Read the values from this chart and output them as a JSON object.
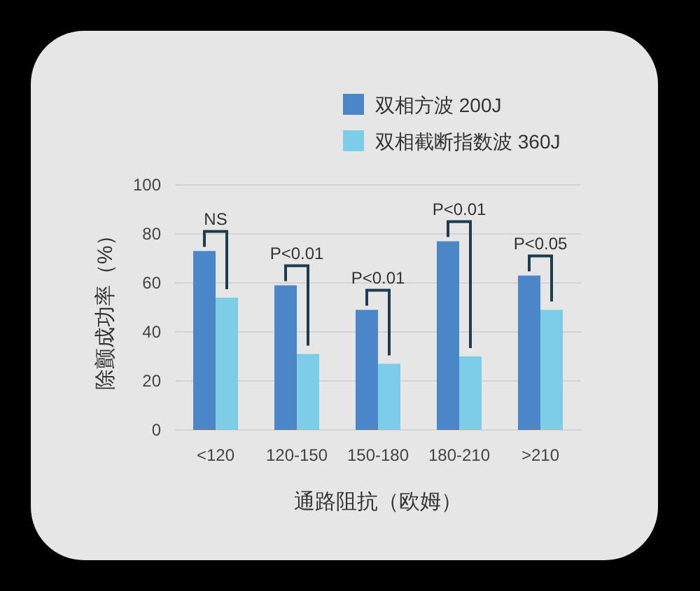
{
  "chart_data": {
    "type": "bar",
    "categories": [
      "<120",
      "120-150",
      "150-180",
      "180-210",
      ">210"
    ],
    "series": [
      {
        "name": "双相方波 200J",
        "color": "#4a86c8",
        "values": [
          73,
          59,
          49,
          77,
          63
        ]
      },
      {
        "name": "双相截断指数波 360J",
        "color": "#7ecde8",
        "values": [
          54,
          31,
          27,
          30,
          49
        ]
      }
    ],
    "ylim": [
      0,
      100
    ],
    "yticks": [
      0,
      20,
      40,
      60,
      80,
      100
    ],
    "grid": "y",
    "legend": "top right",
    "xlabel": "通路阻抗（欧姆）",
    "ylabel": "除颤成功率（%）",
    "annotations": [
      "NS",
      "P<0.01",
      "P<0.01",
      "P<0.01",
      "P<0.05"
    ]
  }
}
